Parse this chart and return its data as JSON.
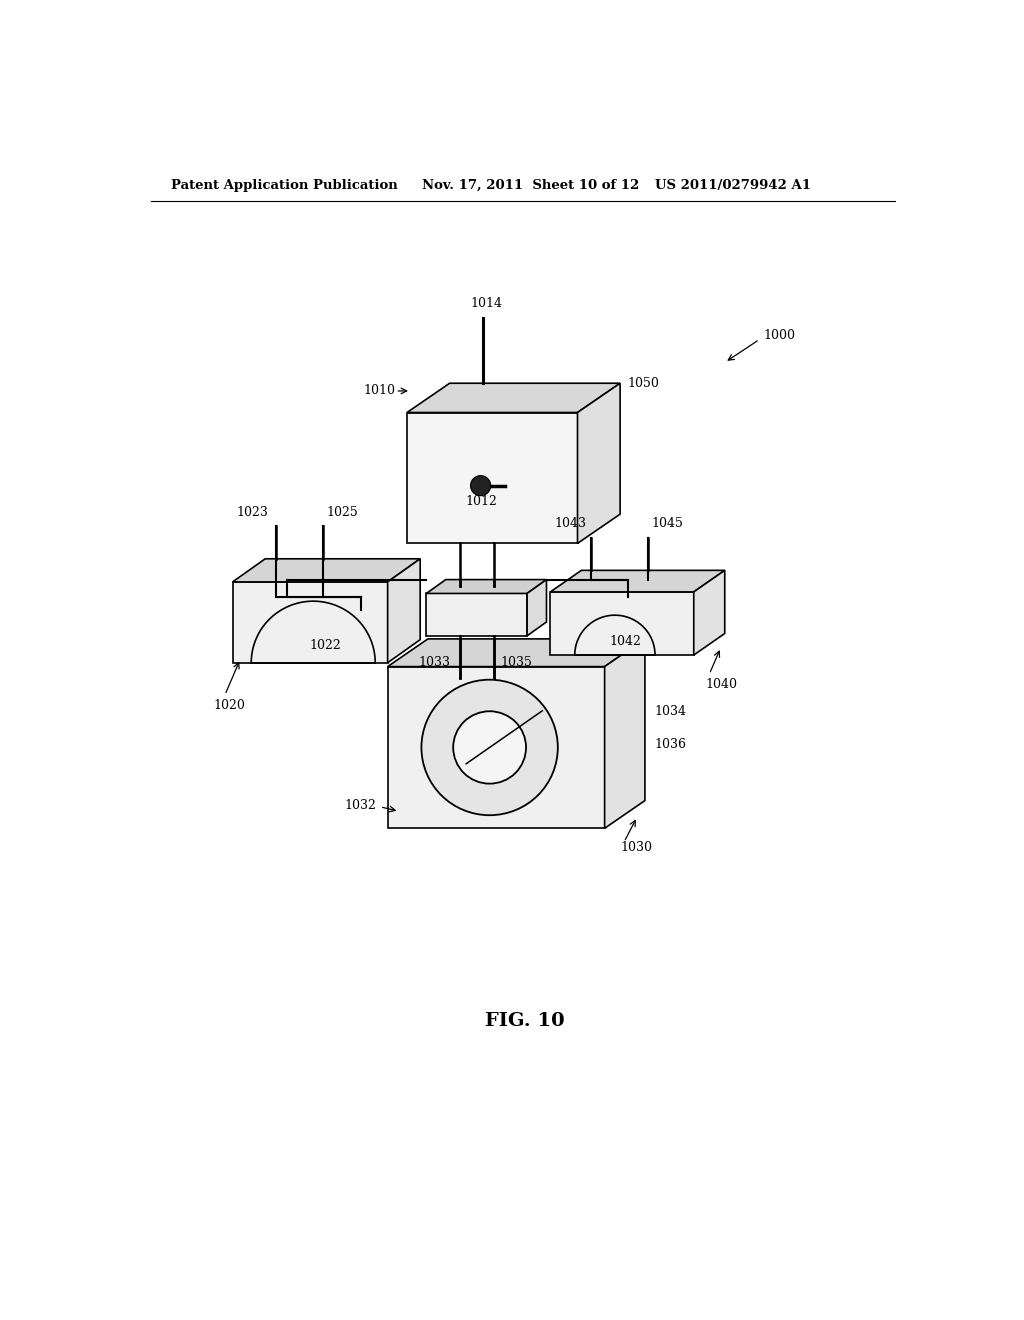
{
  "title": "FIG. 10",
  "header_left": "Patent Application Publication",
  "header_center": "Nov. 17, 2011  Sheet 10 of 12",
  "header_right": "US 2011/0279942 A1",
  "bg_color": "#ffffff",
  "fig_width": 10.24,
  "fig_height": 13.2,
  "dpi": 100
}
